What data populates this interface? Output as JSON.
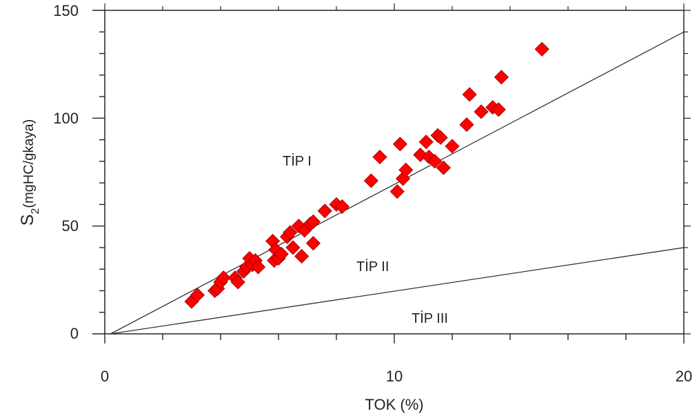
{
  "chart_data": {
    "type": "scatter",
    "xlabel": "TOK (%)",
    "ylabel": {
      "main": "S",
      "sub": "2",
      "unit": "(mgHC/gkaya)"
    },
    "xlim": [
      0,
      20
    ],
    "ylim": [
      0,
      150
    ],
    "x_ticks": [
      0,
      10,
      20
    ],
    "y_ticks": [
      0,
      50,
      100,
      150
    ],
    "x_tick_labels": [
      "0",
      "10",
      "20"
    ],
    "y_tick_labels": [
      "0",
      "50",
      "100",
      "150"
    ],
    "grid": false,
    "marker": {
      "shape": "diamond",
      "color": "#ff0000",
      "edge": "#8b0000"
    },
    "reference_lines": [
      {
        "x": [
          0.2,
          20
        ],
        "y": [
          0,
          140
        ]
      },
      {
        "x": [
          0.2,
          20
        ],
        "y": [
          0,
          40
        ]
      }
    ],
    "region_labels": [
      {
        "text": "TİP I",
        "x": 6.4,
        "y": 81
      },
      {
        "text": "TİP II",
        "x": 9.3,
        "y": 31
      },
      {
        "text": "TİP III",
        "x": 11.4,
        "y": 7
      }
    ],
    "points": [
      [
        3.0,
        15
      ],
      [
        3.2,
        18
      ],
      [
        3.8,
        20
      ],
      [
        3.9,
        21
      ],
      [
        4.0,
        24
      ],
      [
        4.1,
        26
      ],
      [
        4.5,
        26
      ],
      [
        4.6,
        24
      ],
      [
        4.8,
        29
      ],
      [
        4.9,
        31
      ],
      [
        5.0,
        35
      ],
      [
        5.1,
        32
      ],
      [
        5.2,
        34
      ],
      [
        5.3,
        31
      ],
      [
        5.8,
        43
      ],
      [
        5.85,
        34
      ],
      [
        5.9,
        39
      ],
      [
        6.0,
        35
      ],
      [
        6.1,
        37
      ],
      [
        6.3,
        45
      ],
      [
        6.4,
        47
      ],
      [
        6.5,
        40
      ],
      [
        6.7,
        50
      ],
      [
        6.8,
        36
      ],
      [
        6.9,
        48
      ],
      [
        7.1,
        51
      ],
      [
        7.2,
        52
      ],
      [
        7.2,
        42
      ],
      [
        7.6,
        57
      ],
      [
        8.0,
        60
      ],
      [
        8.2,
        59
      ],
      [
        9.2,
        71
      ],
      [
        9.5,
        82
      ],
      [
        10.1,
        66
      ],
      [
        10.2,
        88
      ],
      [
        10.3,
        72
      ],
      [
        10.4,
        76
      ],
      [
        10.9,
        83
      ],
      [
        11.1,
        89
      ],
      [
        11.2,
        82
      ],
      [
        11.4,
        80
      ],
      [
        11.5,
        92
      ],
      [
        11.6,
        91
      ],
      [
        11.7,
        77
      ],
      [
        12.0,
        87
      ],
      [
        12.5,
        97
      ],
      [
        12.6,
        111
      ],
      [
        13.0,
        103
      ],
      [
        13.4,
        105
      ],
      [
        13.6,
        104
      ],
      [
        13.7,
        119
      ],
      [
        15.1,
        132
      ]
    ]
  }
}
